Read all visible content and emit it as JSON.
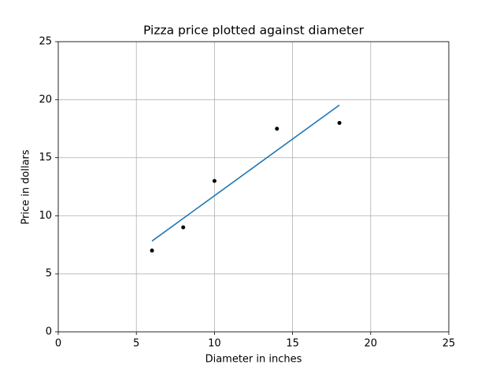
{
  "chart_data": {
    "type": "scatter",
    "title": "Pizza price plotted against diameter",
    "xlabel": "Diameter in inches",
    "ylabel": "Price in dollars",
    "series": [
      {
        "type": "scatter",
        "color": "#000000",
        "x": [
          6,
          8,
          10,
          14,
          18
        ],
        "values": [
          7,
          9,
          13,
          17.5,
          18
        ]
      },
      {
        "type": "line",
        "color": "#1f77b4",
        "x": [
          6,
          18
        ],
        "values": [
          7.82,
          19.54
        ]
      }
    ],
    "xlim": [
      0,
      25
    ],
    "ylim": [
      0,
      25
    ],
    "xticks": [
      0,
      5,
      10,
      15,
      20,
      25
    ],
    "yticks": [
      0,
      5,
      10,
      15,
      20,
      25
    ],
    "grid": true
  }
}
